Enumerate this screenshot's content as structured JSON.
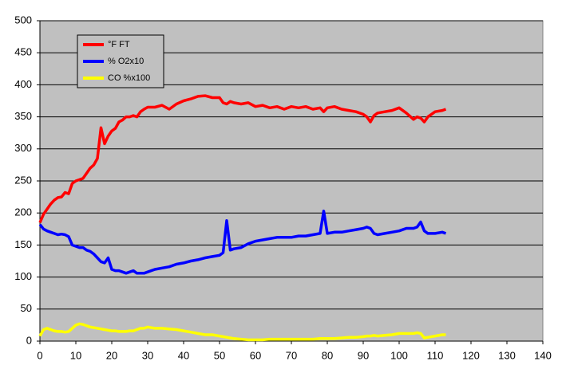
{
  "chart_data": {
    "type": "line",
    "x": [
      0,
      1,
      2,
      3,
      4,
      5,
      6,
      7,
      8,
      9,
      10,
      11,
      12,
      13,
      14,
      15,
      16,
      17,
      18,
      19,
      20,
      21,
      22,
      23,
      24,
      25,
      26,
      27,
      28,
      29,
      30,
      32,
      34,
      36,
      38,
      40,
      42,
      44,
      46,
      48,
      50,
      51,
      52,
      53,
      54,
      56,
      58,
      60,
      62,
      64,
      66,
      68,
      70,
      72,
      74,
      76,
      78,
      79,
      80,
      82,
      84,
      86,
      88,
      90,
      91,
      92,
      93,
      94,
      96,
      98,
      100,
      102,
      104,
      105,
      106,
      107,
      108,
      110,
      112,
      113
    ],
    "series": [
      {
        "name": "°F FT",
        "color": "#ff0000",
        "values": [
          185,
          198,
          206,
          214,
          220,
          224,
          225,
          232,
          230,
          246,
          250,
          252,
          254,
          262,
          270,
          275,
          285,
          333,
          308,
          320,
          328,
          332,
          342,
          345,
          350,
          350,
          352,
          350,
          358,
          362,
          365,
          365,
          368,
          362,
          370,
          375,
          378,
          382,
          383,
          380,
          380,
          372,
          370,
          374,
          372,
          370,
          372,
          366,
          368,
          364,
          366,
          362,
          366,
          364,
          366,
          362,
          364,
          358,
          364,
          366,
          362,
          360,
          358,
          354,
          350,
          342,
          352,
          356,
          358,
          360,
          364,
          356,
          346,
          350,
          348,
          342,
          350,
          358,
          360,
          362
        ]
      },
      {
        "name": "% O2x10",
        "color": "#0000ff",
        "values": [
          182,
          175,
          172,
          170,
          168,
          166,
          167,
          166,
          163,
          150,
          148,
          146,
          146,
          142,
          140,
          136,
          130,
          124,
          122,
          130,
          112,
          110,
          110,
          108,
          106,
          108,
          110,
          106,
          106,
          106,
          108,
          112,
          114,
          116,
          120,
          122,
          125,
          127,
          130,
          132,
          134,
          138,
          188,
          142,
          144,
          146,
          152,
          156,
          158,
          160,
          162,
          162,
          162,
          164,
          164,
          166,
          168,
          203,
          168,
          170,
          170,
          172,
          174,
          176,
          178,
          176,
          168,
          166,
          168,
          170,
          172,
          176,
          176,
          178,
          186,
          172,
          168,
          168,
          170,
          168
        ]
      },
      {
        "name": "CO %x100",
        "color": "#ffff00",
        "values": [
          8,
          18,
          20,
          18,
          16,
          15,
          15,
          14,
          15,
          20,
          25,
          27,
          26,
          24,
          22,
          21,
          20,
          19,
          18,
          17,
          16,
          16,
          15,
          15,
          15,
          16,
          16,
          18,
          20,
          20,
          22,
          20,
          20,
          19,
          18,
          16,
          14,
          12,
          10,
          10,
          8,
          7,
          6,
          5,
          4,
          3,
          2,
          2,
          2,
          3,
          3,
          3,
          3,
          3,
          3,
          3,
          4,
          4,
          4,
          4,
          5,
          6,
          6,
          7,
          8,
          8,
          9,
          8,
          9,
          10,
          12,
          12,
          12,
          13,
          12,
          5,
          6,
          8,
          10,
          10
        ]
      }
    ],
    "xlim": [
      0,
      140
    ],
    "xticks": [
      0,
      10,
      20,
      30,
      40,
      50,
      60,
      70,
      80,
      90,
      100,
      110,
      120,
      130,
      140
    ],
    "ylim": [
      0,
      500
    ],
    "yticks": [
      0,
      50,
      100,
      150,
      200,
      250,
      300,
      350,
      400,
      450,
      500
    ],
    "grid": true,
    "legend": "upper-left",
    "plot_background": "#c0c0c0"
  }
}
